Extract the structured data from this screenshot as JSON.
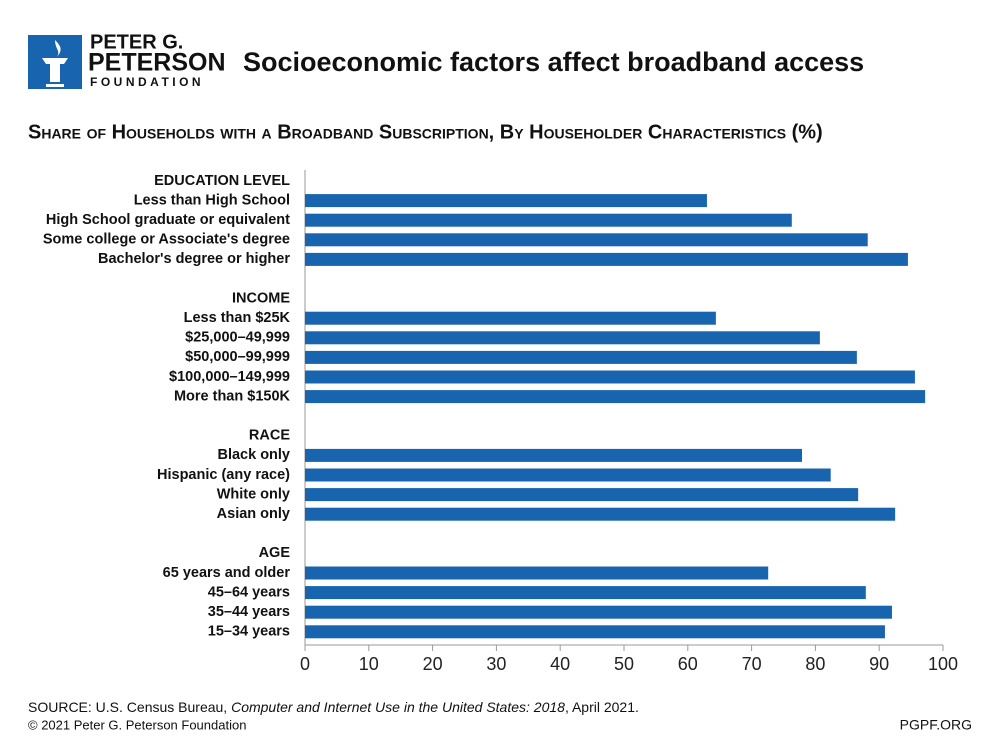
{
  "logo": {
    "line1": "PETER G.",
    "line2": "PETERSON",
    "line3": "FOUNDATION"
  },
  "chart_data": {
    "type": "bar",
    "orientation": "horizontal",
    "title": "Socioeconomic factors affect broadband access",
    "subtitle": "Share of Households with a Broadband Subscription, By Householder Characteristics (%)",
    "categories": [
      "EDUCATION LEVEL",
      "Less than High School",
      "High School graduate or equivalent",
      "Some college or Associate's degree",
      "Bachelor's degree or higher",
      "INCOME",
      "Less than $25K",
      "$25,000–49,999",
      "$50,000–99,999",
      "$100,000–149,999",
      "More than $150K",
      "RACE",
      "Black only",
      "Hispanic (any race)",
      "White only",
      "Asian only",
      "AGE",
      "65 years and older",
      "45–64 years",
      "35–44 years",
      "15–34 years"
    ],
    "values": [
      null,
      63.0,
      76.3,
      88.2,
      94.5,
      null,
      64.4,
      80.7,
      86.5,
      95.6,
      97.2,
      null,
      77.9,
      82.4,
      86.7,
      92.5,
      null,
      72.6,
      87.9,
      92.0,
      90.9
    ],
    "color": "#1864ae",
    "xlim": [
      0,
      100
    ],
    "xticks": [
      0,
      10,
      20,
      30,
      40,
      50,
      60,
      70,
      80,
      90,
      100
    ]
  },
  "footer": {
    "source_prefix": "SOURCE: U.S. Census Bureau, ",
    "source_title": "Computer and Internet Use in the United States: 2018",
    "source_suffix": ", April 2021.",
    "copyright": "© 2021 Peter G. Peterson Foundation",
    "site": "PGPF.ORG"
  }
}
